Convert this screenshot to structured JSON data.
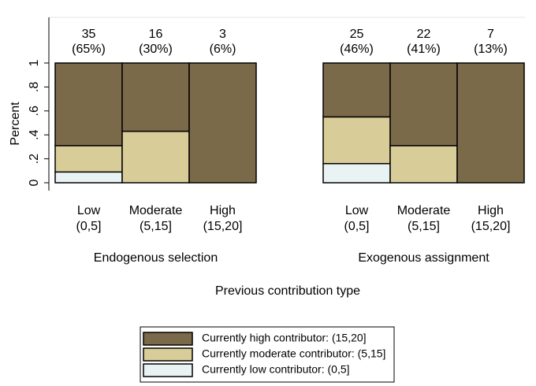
{
  "chart_data": {
    "type": "stacked_bar",
    "y_label": "Percent",
    "x_label": "Previous contribution type",
    "groups": [
      "Endogenous selection",
      "Exogenous assignment"
    ],
    "categories": [
      "Low",
      "Moderate",
      "High",
      "Low",
      "Moderate",
      "High"
    ],
    "category_ranges": [
      "(0,5]",
      "(5,15]",
      "(15,20]",
      "(0,5]",
      "(5,15]",
      "(15,20]"
    ],
    "counts": [
      35,
      16,
      3,
      25,
      22,
      7
    ],
    "shares": [
      65,
      30,
      6,
      46,
      41,
      13
    ],
    "share_labels": [
      "(65%)",
      "(30%)",
      "(6%)",
      "(46%)",
      "(41%)",
      "(13%)"
    ],
    "series": [
      {
        "name": "Currently high contributor: (15,20]",
        "color": "#7b6a4a",
        "values": [
          0.69,
          0.57,
          1,
          0.45,
          0.69,
          1
        ]
      },
      {
        "name": "Currently moderate contributor: (5,15]",
        "color": "#d8cc98",
        "values": [
          0.22,
          0.43,
          0,
          0.39,
          0.31,
          0
        ]
      },
      {
        "name": "Currently low contributor: (0,5]",
        "color": "#eaf3f3",
        "values": [
          0.09,
          0,
          0,
          0.16,
          0,
          0
        ]
      }
    ],
    "ylim": [
      0,
      1
    ],
    "yticks": [
      0,
      {
        "value": 0.2,
        "label": ".2"
      },
      {
        "value": 0.4,
        "label": ".4"
      },
      {
        "value": 0.6,
        "label": ".6"
      },
      {
        "value": 0.8,
        "label": ".8"
      },
      1
    ]
  }
}
